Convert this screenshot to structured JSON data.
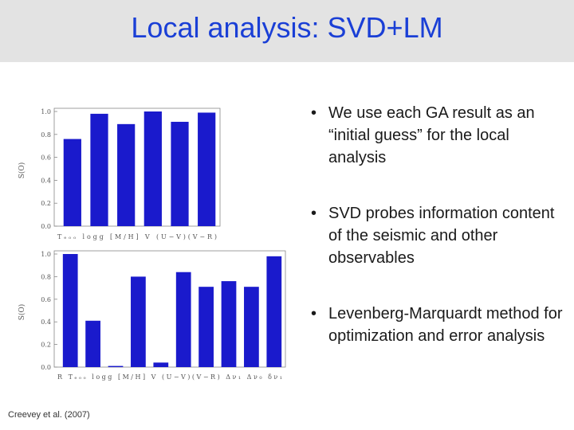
{
  "title": "Local analysis: SVD+LM",
  "bullets": [
    "We use each GA result as an “initial guess” for the local analysis",
    "SVD probes information content of the seismic and other observables",
    "Levenberg-Marquardt method for optimization and error analysis"
  ],
  "bullet_symbol": "•",
  "citation": "Creevey et al. (2007)",
  "chart_data": [
    {
      "type": "bar",
      "ylabel": "S(O)",
      "ylim": [
        0,
        1.0
      ],
      "yticks": [
        "0.0",
        "0.2",
        "0.4",
        "0.6",
        "0.8",
        "1.0"
      ],
      "categories": [
        "T_eff",
        "logg",
        "[M/H]",
        "V",
        "(U−V)",
        "(V−R)"
      ],
      "xticklabel": "Tₑₒₒ  logg [M/H]  V  (U−V)(V−R)",
      "values": [
        0.76,
        0.98,
        0.89,
        1.0,
        0.91,
        0.99
      ],
      "bar_color": "#1a1acc"
    },
    {
      "type": "bar",
      "ylabel": "S(O)",
      "ylim": [
        0,
        1.0
      ],
      "yticks": [
        "0.0",
        "0.2",
        "0.4",
        "0.6",
        "0.8",
        "1.0"
      ],
      "categories": [
        "R",
        "T_eff",
        "logg",
        "[M/H]",
        "V",
        "(U−V)",
        "(V−R)",
        "Δν₁",
        "Δν₀",
        "δν₁"
      ],
      "xticklabel": "R   Tₑₒₒ  logg [M/H]  V  (U−V)(V−R)  Δν₁  Δν₀  δν₁",
      "values": [
        1.0,
        0.41,
        0.01,
        0.8,
        0.04,
        0.84,
        0.71,
        0.76,
        0.71,
        0.98
      ],
      "bar_color": "#1a1acc"
    }
  ]
}
